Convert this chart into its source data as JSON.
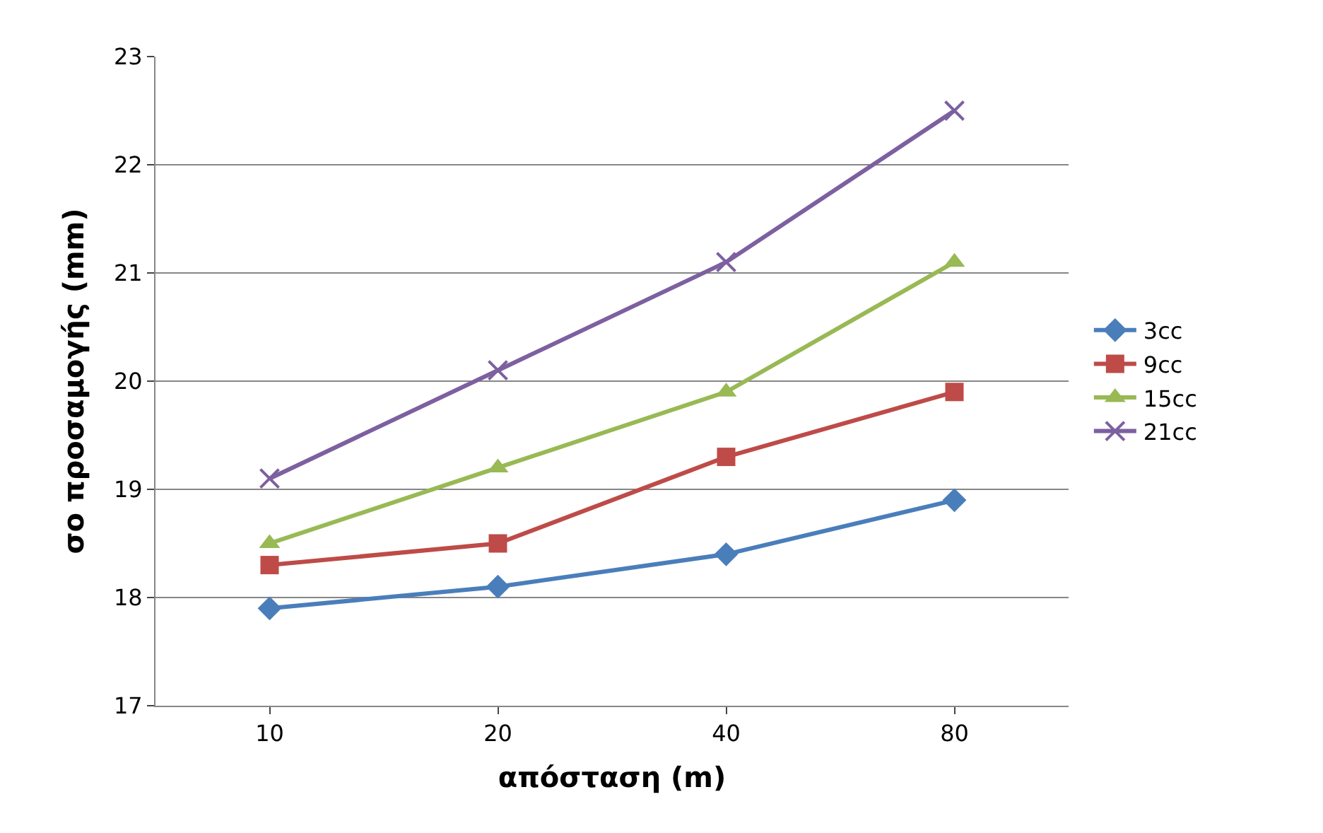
{
  "chart_data": {
    "type": "line",
    "xlabel": "απόσταση (m)",
    "ylabel": "σο προσαμογής (mm)",
    "categories": [
      "10",
      "20",
      "40",
      "80"
    ],
    "series": [
      {
        "name": "3cc",
        "color": "#4a7ebb",
        "marker": "diamond",
        "values": [
          17.9,
          18.1,
          18.4,
          18.9
        ]
      },
      {
        "name": "9cc",
        "color": "#be4b48",
        "marker": "square",
        "values": [
          18.3,
          18.5,
          19.3,
          19.9
        ]
      },
      {
        "name": "15cc",
        "color": "#98b954",
        "marker": "triangle",
        "values": [
          18.5,
          19.2,
          19.9,
          21.1
        ]
      },
      {
        "name": "21cc",
        "color": "#7d60a0",
        "marker": "cross",
        "values": [
          19.1,
          20.1,
          21.1,
          22.5
        ]
      }
    ],
    "ylim": [
      17,
      23
    ],
    "yticks": [
      17,
      18,
      19,
      20,
      21,
      22,
      23
    ],
    "grid": "y",
    "legend": "right",
    "line_style": "solid"
  }
}
